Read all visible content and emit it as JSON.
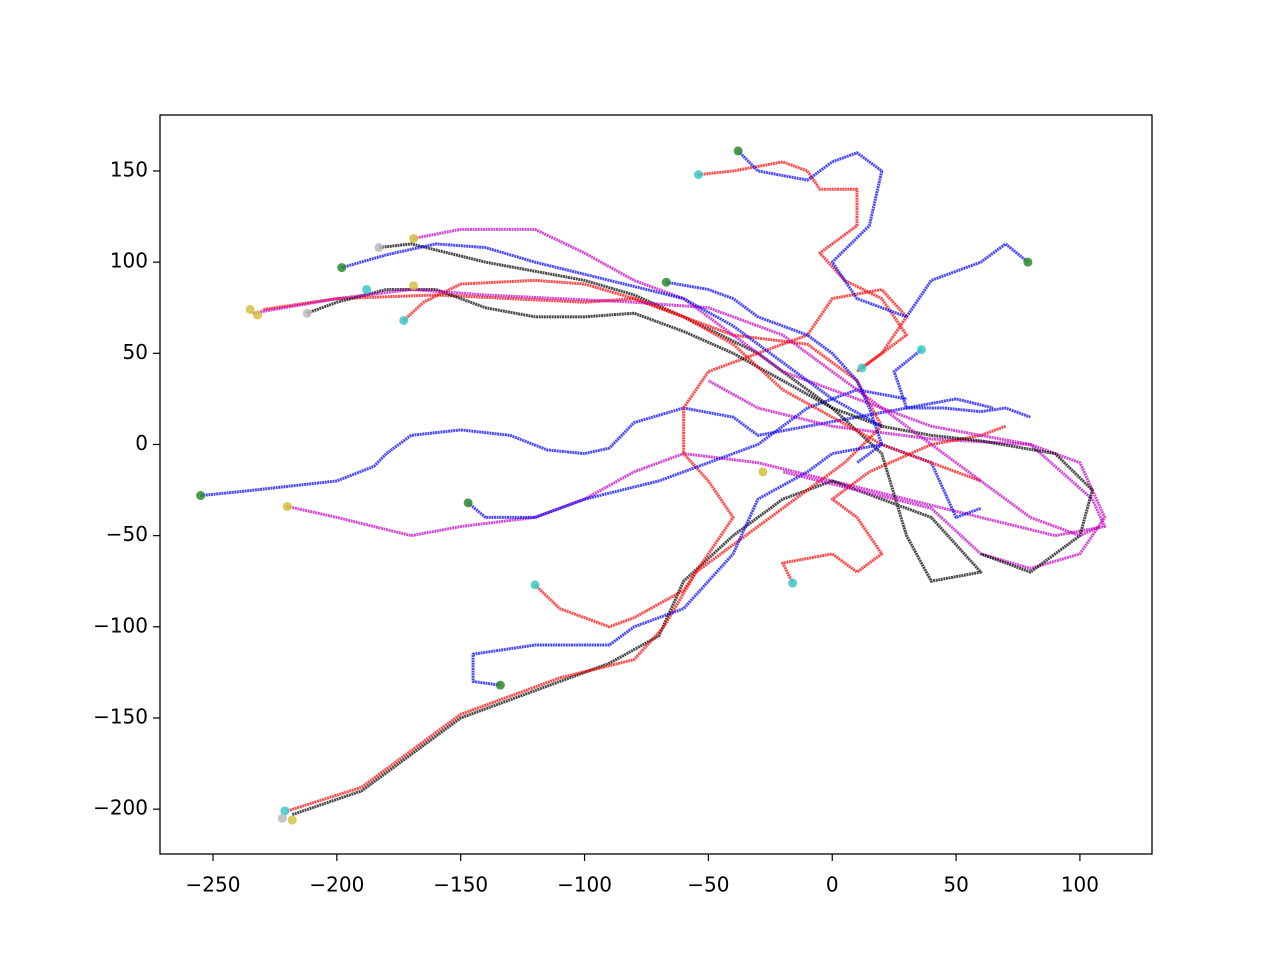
{
  "chart_data": {
    "type": "line",
    "xlim": [
      -271.4,
      129.1
    ],
    "ylim": [
      -224.6,
      180.7
    ],
    "xticks": [
      {
        "value": -250,
        "label": "−250"
      },
      {
        "value": -200,
        "label": "−200"
      },
      {
        "value": -150,
        "label": "−150"
      },
      {
        "value": -100,
        "label": "−100"
      },
      {
        "value": -50,
        "label": "−50"
      },
      0,
      50,
      100
    ],
    "yticks": [
      {
        "value": -200,
        "label": "−200"
      },
      {
        "value": -150,
        "label": "−150"
      },
      {
        "value": -100,
        "label": "−100"
      },
      {
        "value": -50,
        "label": "−50"
      },
      0,
      50,
      100,
      150
    ],
    "grid": false,
    "series": [
      {
        "color": "#0000ff",
        "x": [
          -255,
          -240,
          -200,
          -185,
          -180,
          -170,
          -150,
          -130,
          -115,
          -100,
          -90,
          -80,
          -60,
          -40,
          -30,
          -10,
          10,
          30,
          50,
          65
        ],
        "y": [
          -28,
          -26,
          -20,
          -12,
          -5,
          5,
          8,
          5,
          -3,
          -5,
          -2,
          12,
          20,
          15,
          5,
          10,
          15,
          20,
          25,
          20
        ]
      },
      {
        "color": "#c000c0",
        "x": [
          -220,
          -200,
          -170,
          -150,
          -120,
          -100,
          -80,
          -60,
          -30,
          0,
          30,
          60,
          90,
          110,
          105,
          80,
          40,
          0,
          -30,
          -50
        ],
        "y": [
          -34,
          -40,
          -50,
          -45,
          -40,
          -30,
          -15,
          -5,
          -10,
          -20,
          -30,
          -40,
          -50,
          -45,
          -30,
          0,
          3,
          10,
          20,
          35
        ]
      },
      {
        "color": "#000000",
        "x": [
          -218,
          -190,
          -150,
          -120,
          -90,
          -70,
          -60,
          -40,
          -20,
          0,
          20,
          40,
          60,
          40,
          30,
          20,
          0,
          -30,
          -60,
          -80,
          -100,
          -120,
          -140,
          -170,
          -183
        ],
        "y": [
          -203,
          -190,
          -150,
          -135,
          -120,
          -105,
          -75,
          -50,
          -30,
          -20,
          -30,
          -40,
          -70,
          -75,
          -50,
          -5,
          20,
          50,
          70,
          82,
          90,
          95,
          100,
          110,
          108
        ]
      },
      {
        "color": "#ff0000",
        "x": [
          -220,
          -190,
          -150,
          -110,
          -80,
          -68,
          -55,
          -30,
          -10,
          5,
          20,
          10,
          -10,
          -40,
          -60,
          -80,
          -100,
          -130,
          -160,
          -200,
          -230
        ],
        "y": [
          -201,
          -188,
          -148,
          -128,
          -118,
          -100,
          -70,
          -45,
          -25,
          -10,
          10,
          35,
          55,
          60,
          70,
          80,
          78,
          80,
          82,
          80,
          74
        ]
      },
      {
        "color": "#0000ff",
        "x": [
          -134,
          -145,
          -145,
          -120,
          -90,
          -80,
          -60,
          -40,
          -30,
          -10,
          0,
          20,
          40,
          50,
          60
        ],
        "y": [
          -132,
          -130,
          -115,
          -110,
          -110,
          -100,
          -90,
          -60,
          -30,
          -15,
          -5,
          0,
          -10,
          -40,
          -35
        ]
      },
      {
        "color": "#ff0000",
        "x": [
          -120,
          -110,
          -90,
          -80,
          -60,
          -50,
          -40,
          -50,
          -60,
          -60,
          -50,
          -30,
          -10,
          0,
          20,
          30,
          20,
          10
        ],
        "y": [
          -77,
          -90,
          -100,
          -95,
          -80,
          -60,
          -40,
          -20,
          -5,
          20,
          40,
          50,
          60,
          80,
          85,
          70,
          50,
          40
        ]
      },
      {
        "color": "#ff0000",
        "x": [
          -54,
          -40,
          -20,
          -10,
          -5,
          10,
          10,
          -5,
          5,
          20,
          30,
          12
        ],
        "y": [
          148,
          150,
          155,
          150,
          140,
          140,
          120,
          105,
          90,
          80,
          60,
          42
        ]
      },
      {
        "color": "#0000ff",
        "x": [
          -38,
          -30,
          -10,
          0,
          10,
          20,
          15,
          0,
          10,
          30,
          40,
          60,
          70,
          79
        ],
        "y": [
          161,
          150,
          145,
          155,
          160,
          150,
          120,
          100,
          80,
          70,
          90,
          100,
          110,
          100
        ]
      },
      {
        "color": "#0000ff",
        "x": [
          36,
          25,
          30,
          45,
          60,
          70,
          80
        ],
        "y": [
          52,
          40,
          20,
          20,
          18,
          20,
          15
        ]
      },
      {
        "color": "#ff0000",
        "x": [
          -16,
          -20,
          0,
          10,
          20,
          10,
          0,
          15,
          40,
          60,
          70
        ],
        "y": [
          -76,
          -65,
          -60,
          -70,
          -60,
          -40,
          -30,
          -15,
          0,
          5,
          10
        ]
      },
      {
        "color": "#0000ff",
        "x": [
          -147,
          -140,
          -120,
          -100,
          -70,
          -50,
          -30,
          -10,
          10,
          30
        ],
        "y": [
          -32,
          -40,
          -40,
          -30,
          -20,
          -10,
          0,
          20,
          30,
          25
        ]
      },
      {
        "color": "#c000c0",
        "x": [
          -169,
          -150,
          -120,
          -100,
          -80,
          -60,
          -40,
          -20,
          0,
          20,
          40,
          60,
          80,
          100,
          110,
          100,
          80,
          60,
          40,
          10,
          -20
        ],
        "y": [
          113,
          118,
          118,
          105,
          90,
          80,
          60,
          40,
          30,
          20,
          10,
          5,
          0,
          -10,
          -40,
          -60,
          -68,
          -60,
          -35,
          -25,
          -15
        ]
      },
      {
        "color": "#000000",
        "x": [
          -212,
          -200,
          -180,
          -160,
          -140,
          -120,
          -100,
          -80,
          -60,
          -40,
          -20,
          0,
          20,
          40,
          60,
          90,
          105,
          100,
          80,
          60
        ],
        "y": [
          72,
          78,
          85,
          85,
          75,
          70,
          70,
          72,
          62,
          50,
          35,
          20,
          10,
          5,
          2,
          -5,
          -25,
          -50,
          -70,
          -60
        ]
      },
      {
        "color": "#ff0000",
        "x": [
          -173,
          -165,
          -150,
          -120,
          -100,
          -80,
          -60,
          -40,
          -20,
          0,
          20,
          40,
          60
        ],
        "y": [
          68,
          78,
          88,
          90,
          88,
          80,
          70,
          55,
          30,
          15,
          0,
          -10,
          -20
        ]
      },
      {
        "color": "#c000c0",
        "x": [
          -234,
          -200,
          -170,
          -140,
          -110,
          -80,
          -50,
          -20,
          0,
          20,
          40,
          60,
          80,
          100,
          108
        ],
        "y": [
          72,
          80,
          85,
          82,
          80,
          78,
          75,
          60,
          40,
          20,
          0,
          -20,
          -40,
          -50,
          -45
        ]
      },
      {
        "color": "#0000ff",
        "x": [
          -198,
          -180,
          -160,
          -140,
          -120,
          -90,
          -60,
          -40,
          -20,
          0,
          20
        ],
        "y": [
          97,
          104,
          110,
          108,
          100,
          90,
          80,
          65,
          45,
          25,
          10
        ]
      },
      {
        "color": "#0000ff",
        "x": [
          -67,
          -50,
          -40,
          -30,
          -10,
          0,
          10,
          15,
          20,
          10
        ],
        "y": [
          89,
          85,
          80,
          70,
          60,
          50,
          35,
          20,
          0,
          -10
        ]
      }
    ],
    "point_series": [
      {
        "color": "#2e8b2e",
        "x": [
          -255,
          -147,
          -134,
          -198,
          -67,
          -38,
          79
        ],
        "y": [
          -28,
          -32,
          -132,
          97,
          89,
          161,
          100
        ]
      },
      {
        "color": "#3cc8c8",
        "x": [
          -221,
          -120,
          -54,
          36,
          12,
          -16,
          -173,
          -188
        ],
        "y": [
          -201,
          -77,
          148,
          52,
          42,
          -76,
          68,
          85
        ]
      },
      {
        "color": "#d4c040",
        "x": [
          -220,
          -169,
          -169,
          -235,
          -232,
          -218,
          -28
        ],
        "y": [
          -34,
          113,
          87,
          74,
          71,
          -206,
          -15
        ]
      },
      {
        "color": "#bbbbbb",
        "x": [
          -183,
          -212,
          -222
        ],
        "y": [
          108,
          72,
          -205
        ]
      }
    ]
  }
}
